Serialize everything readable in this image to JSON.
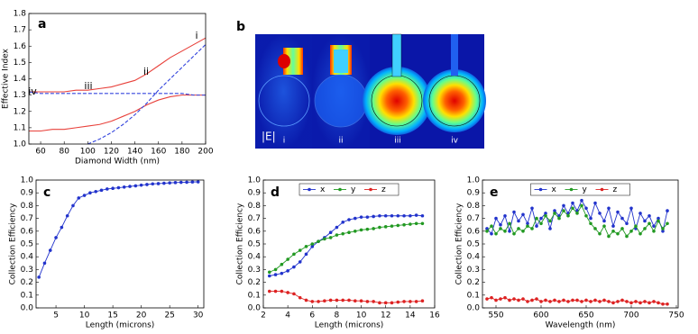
{
  "chart_data": [
    {
      "type": "line",
      "panel": "a",
      "xlabel": "Diamond Width (nm)",
      "ylabel": "Effective Index",
      "x": [
        50,
        60,
        70,
        80,
        90,
        100,
        110,
        120,
        130,
        140,
        150,
        160,
        170,
        180,
        190,
        200
      ],
      "xlim": [
        50,
        200
      ],
      "xticks": [
        60,
        80,
        100,
        120,
        140,
        160,
        180,
        200
      ],
      "ylim": [
        1,
        1.8
      ],
      "yticks": [
        {
          "value": 1,
          "label": "1.0"
        },
        1.1,
        1.2,
        1.3,
        1.4,
        1.5,
        1.6,
        1.7,
        1.8
      ],
      "markers": false,
      "series": [
        {
          "color": "#e8403a",
          "dashed": false,
          "values": [
            1.32,
            1.32,
            1.32,
            1.32,
            1.33,
            1.33,
            1.34,
            1.35,
            1.37,
            1.39,
            1.43,
            1.48,
            1.53,
            1.57,
            1.61,
            1.65
          ]
        },
        {
          "color": "#e8403a",
          "dashed": false,
          "values": [
            1.08,
            1.08,
            1.09,
            1.09,
            1.1,
            1.11,
            1.12,
            1.14,
            1.17,
            1.2,
            1.24,
            1.27,
            1.29,
            1.3,
            1.3,
            1.3
          ]
        },
        {
          "color": "#3344dd",
          "dashed": true,
          "values": [
            null,
            null,
            null,
            null,
            null,
            1.0,
            1.03,
            1.07,
            1.12,
            1.18,
            1.25,
            1.33,
            1.4,
            1.47,
            1.54,
            1.61
          ]
        },
        {
          "color": "#3344dd",
          "dashed": true,
          "values": [
            1.32,
            1.31,
            1.31,
            1.31,
            1.31,
            1.31,
            1.31,
            1.31,
            1.31,
            1.31,
            1.31,
            1.31,
            1.31,
            1.31,
            1.3,
            1.3
          ]
        }
      ],
      "annotations": [
        "i",
        "ii",
        "iii",
        "iv"
      ]
    },
    {
      "type": "image",
      "panel": "b",
      "colorbar_label": "|E|",
      "labels": [
        "i",
        "ii",
        "iii",
        "iv"
      ]
    },
    {
      "type": "line",
      "panel": "c",
      "xlabel": "Length (microns)",
      "ylabel": "Collection Efficiency",
      "x": [
        2,
        3,
        4,
        5,
        6,
        7,
        8,
        9,
        10,
        11,
        12,
        13,
        14,
        15,
        16,
        17,
        18,
        19,
        20,
        21,
        22,
        23,
        24,
        25,
        26,
        27,
        28,
        29,
        30
      ],
      "xlim": [
        1.5,
        31
      ],
      "xticks": [
        5,
        10,
        15,
        20,
        25,
        30
      ],
      "ylim": [
        0,
        1
      ],
      "yticks": [
        {
          "value": 0,
          "label": "0.0"
        },
        0.1,
        0.2,
        0.3,
        0.4,
        0.5,
        0.6,
        0.7,
        0.8,
        0.9,
        {
          "value": 1,
          "label": "1.0"
        }
      ],
      "markers": true,
      "series": [
        {
          "color": "#2233cc",
          "dashed": false,
          "values": [
            0.24,
            0.35,
            0.45,
            0.55,
            0.63,
            0.72,
            0.8,
            0.86,
            0.88,
            0.9,
            0.91,
            0.92,
            0.93,
            0.935,
            0.94,
            0.945,
            0.95,
            0.955,
            0.96,
            0.965,
            0.97,
            0.972,
            0.975,
            0.978,
            0.98,
            0.982,
            0.983,
            0.985,
            0.986
          ]
        }
      ]
    },
    {
      "type": "line",
      "panel": "d",
      "xlabel": "Length (microns)",
      "ylabel": "Collection Efficiency",
      "x": [
        2.5,
        3,
        3.5,
        4,
        4.5,
        5,
        5.5,
        6,
        6.5,
        7,
        7.5,
        8,
        8.5,
        9,
        9.5,
        10,
        10.5,
        11,
        11.5,
        12,
        12.5,
        13,
        13.5,
        14,
        14.5,
        15
      ],
      "xlim": [
        2,
        16
      ],
      "xticks": [
        2,
        4,
        6,
        8,
        10,
        12,
        14,
        16
      ],
      "ylim": [
        0,
        1
      ],
      "yticks": [
        {
          "value": 0,
          "label": "0.0"
        },
        0.1,
        0.2,
        0.3,
        0.4,
        0.5,
        0.6,
        0.7,
        0.8,
        0.9,
        {
          "value": 1,
          "label": "1.0"
        }
      ],
      "markers": true,
      "legend": "upper center",
      "series": [
        {
          "name": "x",
          "color": "#2233cc",
          "dashed": false,
          "values": [
            0.25,
            0.26,
            0.27,
            0.29,
            0.32,
            0.36,
            0.42,
            0.48,
            0.52,
            0.55,
            0.59,
            0.63,
            0.67,
            0.69,
            0.7,
            0.71,
            0.71,
            0.715,
            0.72,
            0.72,
            0.72,
            0.72,
            0.72,
            0.72,
            0.725,
            0.72
          ]
        },
        {
          "name": "y",
          "color": "#229922",
          "dashed": false,
          "values": [
            0.28,
            0.3,
            0.34,
            0.38,
            0.42,
            0.45,
            0.48,
            0.5,
            0.52,
            0.54,
            0.55,
            0.57,
            0.58,
            0.59,
            0.6,
            0.61,
            0.615,
            0.62,
            0.63,
            0.635,
            0.64,
            0.645,
            0.65,
            0.655,
            0.66,
            0.66
          ]
        },
        {
          "name": "z",
          "color": "#dd2222",
          "dashed": false,
          "values": [
            0.13,
            0.13,
            0.13,
            0.12,
            0.11,
            0.08,
            0.06,
            0.05,
            0.05,
            0.055,
            0.06,
            0.06,
            0.06,
            0.06,
            0.055,
            0.055,
            0.05,
            0.05,
            0.04,
            0.04,
            0.04,
            0.045,
            0.05,
            0.05,
            0.05,
            0.055
          ]
        }
      ]
    },
    {
      "type": "line",
      "panel": "e",
      "xlabel": "Wavelength (nm)",
      "ylabel": "Collection Efficiency",
      "x": [
        540,
        545,
        550,
        555,
        560,
        565,
        570,
        575,
        580,
        585,
        590,
        595,
        600,
        605,
        610,
        615,
        620,
        625,
        630,
        635,
        640,
        645,
        650,
        655,
        660,
        665,
        670,
        675,
        680,
        685,
        690,
        695,
        700,
        705,
        710,
        715,
        720,
        725,
        730,
        735,
        740
      ],
      "xlim": [
        535,
        752
      ],
      "xticks": [
        550,
        600,
        650,
        700,
        750
      ],
      "ylim": [
        0,
        1
      ],
      "yticks": [
        {
          "value": 0,
          "label": "0.0"
        },
        0.1,
        0.2,
        0.3,
        0.4,
        0.5,
        0.6,
        0.7,
        0.8,
        0.9,
        {
          "value": 1,
          "label": "1.0"
        }
      ],
      "markers": true,
      "legend": "upper center",
      "series": [
        {
          "name": "x",
          "color": "#2233cc",
          "dashed": false,
          "values": [
            0.62,
            0.58,
            0.7,
            0.65,
            0.72,
            0.6,
            0.75,
            0.68,
            0.73,
            0.66,
            0.78,
            0.64,
            0.7,
            0.74,
            0.62,
            0.76,
            0.72,
            0.8,
            0.74,
            0.82,
            0.76,
            0.84,
            0.78,
            0.7,
            0.82,
            0.74,
            0.68,
            0.78,
            0.64,
            0.75,
            0.7,
            0.66,
            0.78,
            0.62,
            0.74,
            0.68,
            0.72,
            0.64,
            0.7,
            0.6,
            0.76
          ]
        },
        {
          "name": "y",
          "color": "#229922",
          "dashed": false,
          "values": [
            0.6,
            0.64,
            0.58,
            0.62,
            0.6,
            0.66,
            0.58,
            0.62,
            0.6,
            0.64,
            0.62,
            0.7,
            0.66,
            0.72,
            0.68,
            0.74,
            0.7,
            0.76,
            0.72,
            0.78,
            0.74,
            0.8,
            0.72,
            0.66,
            0.62,
            0.58,
            0.64,
            0.56,
            0.6,
            0.58,
            0.62,
            0.56,
            0.6,
            0.64,
            0.58,
            0.62,
            0.66,
            0.6,
            0.68,
            0.62,
            0.66
          ]
        },
        {
          "name": "z",
          "color": "#dd2222",
          "dashed": false,
          "values": [
            0.07,
            0.08,
            0.06,
            0.07,
            0.08,
            0.06,
            0.07,
            0.06,
            0.07,
            0.05,
            0.06,
            0.07,
            0.05,
            0.06,
            0.05,
            0.06,
            0.05,
            0.06,
            0.05,
            0.06,
            0.06,
            0.05,
            0.06,
            0.05,
            0.06,
            0.05,
            0.06,
            0.05,
            0.04,
            0.05,
            0.06,
            0.05,
            0.04,
            0.05,
            0.04,
            0.05,
            0.04,
            0.05,
            0.04,
            0.03,
            0.03
          ]
        }
      ]
    }
  ]
}
